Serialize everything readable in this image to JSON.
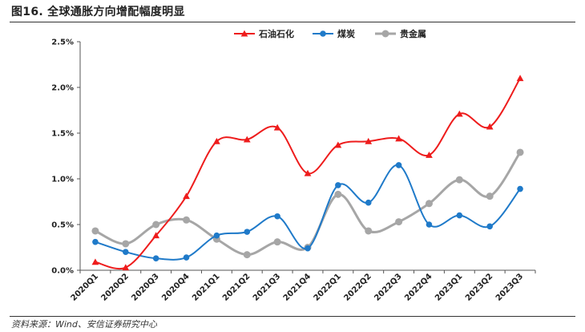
{
  "figure": {
    "title": "图16. 全球通胀方向增配幅度明显",
    "source": "资料来源：Wind、安信证券研究中心"
  },
  "chart_data": {
    "type": "line",
    "title": "",
    "xlabel": "",
    "ylabel": "",
    "categories": [
      "2020Q1",
      "2020Q2",
      "2020Q3",
      "2020Q4",
      "2021Q1",
      "2021Q2",
      "2021Q3",
      "2021Q4",
      "2022Q1",
      "2022Q2",
      "2022Q3",
      "2022Q4",
      "2023Q1",
      "2023Q2",
      "2023Q3"
    ],
    "ylim": [
      0,
      2.5
    ],
    "yticks": [
      "0.0%",
      "0.5%",
      "1.0%",
      "1.5%",
      "2.0%",
      "2.5%"
    ],
    "grid": false,
    "legend_position": "top",
    "smooth": true,
    "series": [
      {
        "name": "石油石化",
        "color": "#ee1c1c",
        "marker": "triangle",
        "values": [
          0.09,
          0.03,
          0.38,
          0.81,
          1.41,
          1.43,
          1.56,
          1.06,
          1.37,
          1.41,
          1.44,
          1.26,
          1.71,
          1.57,
          2.1
        ]
      },
      {
        "name": "煤炭",
        "color": "#1f7ac9",
        "marker": "circle",
        "values": [
          0.31,
          0.2,
          0.13,
          0.14,
          0.38,
          0.42,
          0.59,
          0.24,
          0.93,
          0.74,
          1.15,
          0.5,
          0.6,
          0.48,
          0.89
        ]
      },
      {
        "name": "贵金属",
        "color": "#a6a6a6",
        "marker": "circle",
        "values": [
          0.43,
          0.29,
          0.5,
          0.55,
          0.34,
          0.17,
          0.31,
          0.25,
          0.83,
          0.43,
          0.53,
          0.73,
          0.99,
          0.81,
          1.29
        ]
      }
    ]
  }
}
